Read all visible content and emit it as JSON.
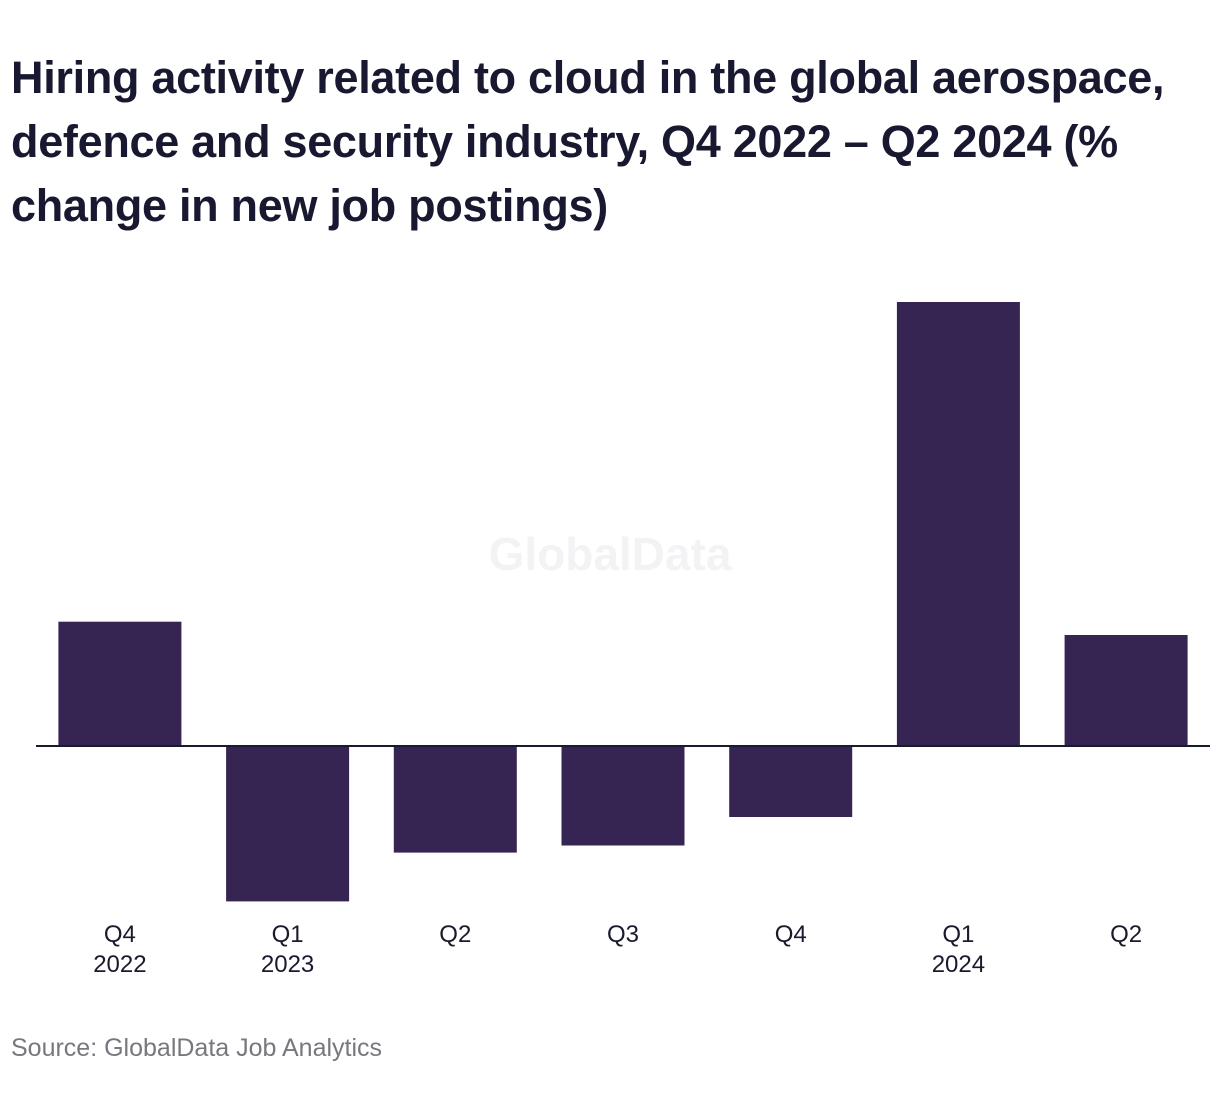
{
  "chart_data": {
    "type": "bar",
    "title": "Hiring activity related to cloud in the global aerospace, defence and security industry, Q4 2022 – Q2 2024 (% change in new job postings)",
    "categories": [
      [
        "Q4",
        "2022"
      ],
      [
        "Q1",
        "2023"
      ],
      [
        "Q2",
        ""
      ],
      [
        "Q3",
        ""
      ],
      [
        "Q4",
        ""
      ],
      [
        "Q1",
        "2024"
      ],
      [
        "Q2",
        ""
      ]
    ],
    "values": [
      14.0,
      -17.5,
      -12.0,
      -11.2,
      -8.0,
      50.0,
      12.5
    ],
    "ylim": [
      -17.5,
      50
    ],
    "grid": false,
    "bar_color": "#362452",
    "axis_color": "#1a1a2e",
    "watermark": "GlobalData"
  },
  "source": "Source: GlobalData Job Analytics"
}
